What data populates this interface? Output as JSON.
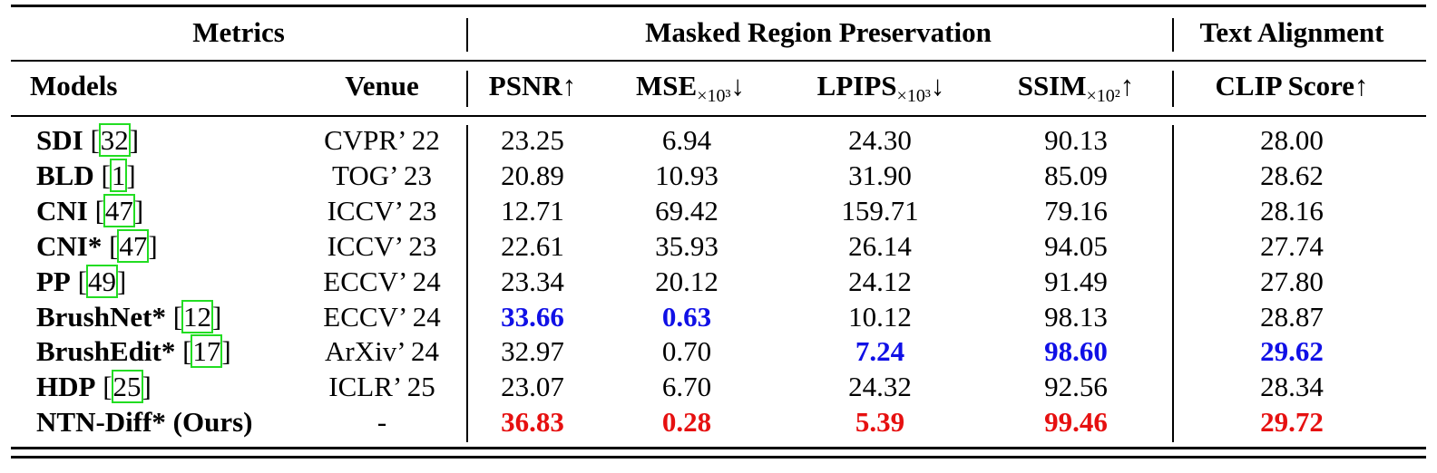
{
  "header": {
    "group_metrics": "Metrics",
    "group_preservation": "Masked Region Preservation",
    "group_text": "Text Alignment",
    "col_models": "Models",
    "col_venue": "Venue",
    "psnr": {
      "label": "PSNR",
      "arrow": "↑"
    },
    "mse": {
      "label": "MSE",
      "sub": "×10³",
      "arrow": "↓"
    },
    "lpips": {
      "label": "LPIPS",
      "sub": "×10³",
      "arrow": "↓"
    },
    "ssim": {
      "label": "SSIM",
      "sub": "×10²",
      "arrow": "↑"
    },
    "clip": {
      "label": "CLIP Score",
      "arrow": "↑"
    }
  },
  "rows": [
    {
      "model": "SDI",
      "ref": "32",
      "venue": "CVPR’ 22",
      "psnr": "23.25",
      "mse": "6.94",
      "lpips": "24.30",
      "ssim": "90.13",
      "clip": "28.00"
    },
    {
      "model": "BLD",
      "ref": "1",
      "venue": "TOG’ 23",
      "psnr": "20.89",
      "mse": "10.93",
      "lpips": "31.90",
      "ssim": "85.09",
      "clip": "28.62"
    },
    {
      "model": "CNI",
      "ref": "47",
      "venue": "ICCV’ 23",
      "psnr": "12.71",
      "mse": "69.42",
      "lpips": "159.71",
      "ssim": "79.16",
      "clip": "28.16"
    },
    {
      "model": "CNI*",
      "ref": "47",
      "venue": "ICCV’ 23",
      "psnr": "22.61",
      "mse": "35.93",
      "lpips": "26.14",
      "ssim": "94.05",
      "clip": "27.74"
    },
    {
      "model": "PP",
      "ref": "49",
      "venue": "ECCV’ 24",
      "psnr": "23.34",
      "mse": "20.12",
      "lpips": "24.12",
      "ssim": "91.49",
      "clip": "27.80"
    },
    {
      "model": "BrushNet*",
      "ref": "12",
      "venue": "ECCV’ 24",
      "psnr": "33.66",
      "mse": "0.63",
      "lpips": "10.12",
      "ssim": "98.13",
      "clip": "28.87"
    },
    {
      "model": "BrushEdit*",
      "ref": "17",
      "venue": "ArXiv’ 24",
      "psnr": "32.97",
      "mse": "0.70",
      "lpips": "7.24",
      "ssim": "98.60",
      "clip": "29.62"
    },
    {
      "model": "HDP",
      "ref": "25",
      "venue": "ICLR’ 25",
      "psnr": "23.07",
      "mse": "6.70",
      "lpips": "24.32",
      "ssim": "92.56",
      "clip": "28.34"
    },
    {
      "model": "NTN-Diff* (Ours)",
      "ref": "",
      "venue": "-",
      "psnr": "36.83",
      "mse": "0.28",
      "lpips": "5.39",
      "ssim": "99.46",
      "clip": "29.72"
    }
  ],
  "highlight_colors": {
    "best": "#e61010",
    "second": "#1010e6"
  }
}
